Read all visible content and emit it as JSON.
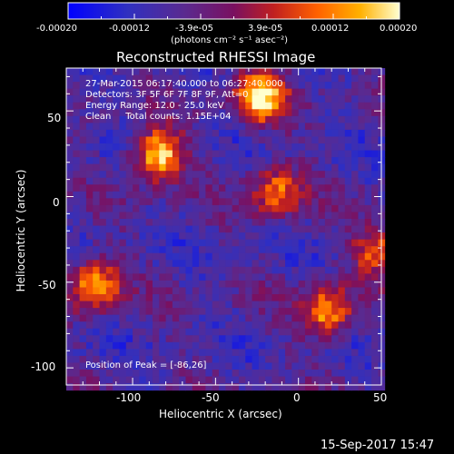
{
  "colorbar": {
    "ticks": [
      "-0.00020",
      "-0.00012",
      "-3.9e-05",
      "3.9e-05",
      "0.00012",
      "0.00020"
    ],
    "unit_label": "(photons cm⁻² s⁻¹ asec⁻²)"
  },
  "info": {
    "line1": "27-Mar-2015 06:17:40.000 to 06:27:40.000",
    "line2": "Detectors: 3F 5F 6F 7F 8F 9F, Att=0",
    "line3": "Energy Range: 12.0 - 25.0 keV",
    "line4": "Clean     Total counts: 1.15E+04",
    "peak": "Position of Peak = [-86,26]"
  },
  "footer": {
    "timestamp": "15-Sep-2017 15:47"
  },
  "chart_data": {
    "type": "heatmap",
    "title": "Reconstructed RHESSI Image",
    "xlabel": "Heliocentric X (arcsec)",
    "ylabel": "Heliocentric Y (arcsec)",
    "xlim": [
      -140,
      50
    ],
    "ylim": [
      -110,
      75
    ],
    "x_ticks": [
      "-100",
      "-50",
      "0",
      "50"
    ],
    "y_ticks": [
      "-100",
      "-50",
      "0",
      "50"
    ],
    "colorbar_range": [
      -0.0002,
      0.0002
    ],
    "peak_position": [
      -86,
      26
    ],
    "bright_sources": [
      {
        "x": -86,
        "y": 26,
        "level": 1.0
      },
      {
        "x": -25,
        "y": 60,
        "level": 0.95
      },
      {
        "x": -125,
        "y": -50,
        "level": 0.85
      },
      {
        "x": 15,
        "y": -65,
        "level": 0.8
      },
      {
        "x": -15,
        "y": 5,
        "level": 0.7
      },
      {
        "x": 45,
        "y": -30,
        "level": 0.6
      }
    ]
  }
}
